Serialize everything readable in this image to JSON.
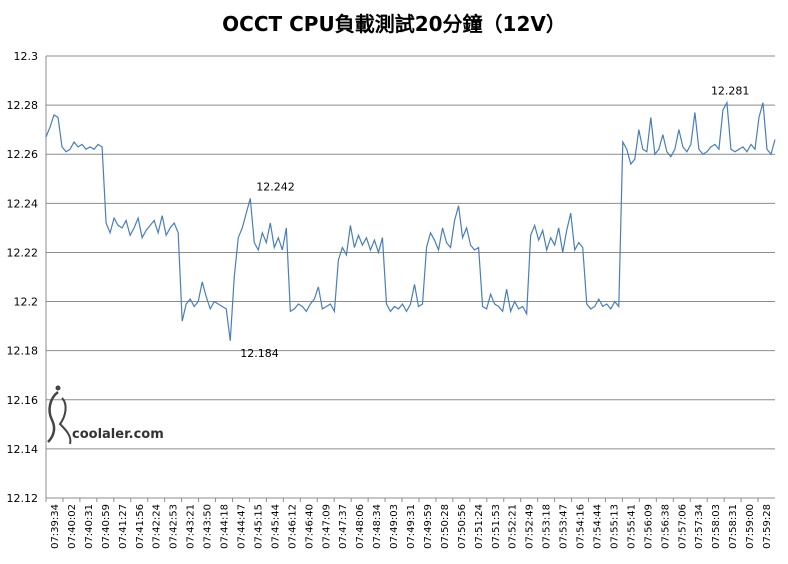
{
  "chart_data": {
    "type": "line",
    "title": "OCCT CPU負載測試20分鐘（12V）",
    "xlabel": "",
    "ylabel": "",
    "ylim": [
      12.12,
      12.3
    ],
    "y_ticks": [
      "12.12",
      "12.14",
      "12.16",
      "12.18",
      "12.2",
      "12.22",
      "12.24",
      "12.26",
      "12.28",
      "12.3"
    ],
    "grid": true,
    "line_color": "#4a7ebb",
    "x_ticks": [
      "07:39:34",
      "07:40:02",
      "07:40:31",
      "07:40:59",
      "07:41:27",
      "07:41:56",
      "07:42:24",
      "07:42:53",
      "07:43:21",
      "07:43:50",
      "07:44:18",
      "07:44:47",
      "07:45:15",
      "07:45:44",
      "07:46:12",
      "07:46:40",
      "07:47:09",
      "07:47:37",
      "07:48:06",
      "07:48:34",
      "07:49:03",
      "07:49:31",
      "07:49:59",
      "07:50:28",
      "07:50:56",
      "07:51:24",
      "07:51:53",
      "07:52:21",
      "07:52:49",
      "07:53:18",
      "07:53:47",
      "07:54:16",
      "07:54:44",
      "07:55:13",
      "07:55:41",
      "07:56:09",
      "07:56:38",
      "07:57:06",
      "07:57:34",
      "07:58:03",
      "07:58:31",
      "07:59:00",
      "07:59:28"
    ],
    "series": [
      {
        "values": [
          12.267,
          12.271,
          12.276,
          12.275,
          12.263,
          12.261,
          12.262,
          12.265,
          12.263,
          12.264,
          12.262,
          12.263,
          12.262,
          12.264,
          12.263,
          12.232,
          12.228,
          12.234,
          12.231,
          12.23,
          12.233,
          12.227,
          12.23,
          12.234,
          12.226,
          12.229,
          12.231,
          12.233,
          12.228,
          12.235,
          12.227,
          12.23,
          12.232,
          12.228,
          12.192,
          12.199,
          12.201,
          12.198,
          12.2,
          12.208,
          12.202,
          12.197,
          12.2,
          12.199,
          12.198,
          12.197,
          12.184,
          12.21,
          12.226,
          12.23,
          12.236,
          12.242,
          12.224,
          12.221,
          12.228,
          12.224,
          12.232,
          12.222,
          12.226,
          12.221,
          12.23,
          12.196,
          12.197,
          12.199,
          12.198,
          12.196,
          12.199,
          12.201,
          12.206,
          12.197,
          12.198,
          12.199,
          12.196,
          12.217,
          12.222,
          12.219,
          12.231,
          12.222,
          12.227,
          12.223,
          12.226,
          12.221,
          12.225,
          12.22,
          12.226,
          12.199,
          12.196,
          12.198,
          12.197,
          12.199,
          12.196,
          12.199,
          12.207,
          12.198,
          12.199,
          12.222,
          12.228,
          12.225,
          12.221,
          12.23,
          12.224,
          12.222,
          12.233,
          12.239,
          12.226,
          12.23,
          12.223,
          12.221,
          12.222,
          12.198,
          12.197,
          12.203,
          12.199,
          12.198,
          12.196,
          12.205,
          12.196,
          12.2,
          12.197,
          12.198,
          12.195,
          12.227,
          12.231,
          12.225,
          12.229,
          12.221,
          12.226,
          12.223,
          12.23,
          12.22,
          12.229,
          12.236,
          12.221,
          12.224,
          12.222,
          12.199,
          12.197,
          12.198,
          12.201,
          12.198,
          12.199,
          12.197,
          12.2,
          12.198,
          12.265,
          12.262,
          12.256,
          12.258,
          12.27,
          12.262,
          12.261,
          12.275,
          12.26,
          12.262,
          12.268,
          12.261,
          12.259,
          12.262,
          12.27,
          12.263,
          12.261,
          12.264,
          12.277,
          12.262,
          12.26,
          12.261,
          12.263,
          12.264,
          12.262,
          12.278,
          12.281,
          12.262,
          12.261,
          12.262,
          12.263,
          12.261,
          12.264,
          12.262,
          12.275,
          12.281,
          12.262,
          12.26,
          12.266
        ]
      }
    ],
    "annotations": [
      {
        "label": "12.281",
        "x_index": 171,
        "y": 12.281
      },
      {
        "label": "12.242",
        "x_index": 51,
        "y": 12.242
      },
      {
        "label": "12.184",
        "x_index": 46,
        "y": 12.184
      }
    ]
  },
  "watermark": {
    "text": "coolaler.com",
    "icon": "coolaler-logo-icon"
  }
}
